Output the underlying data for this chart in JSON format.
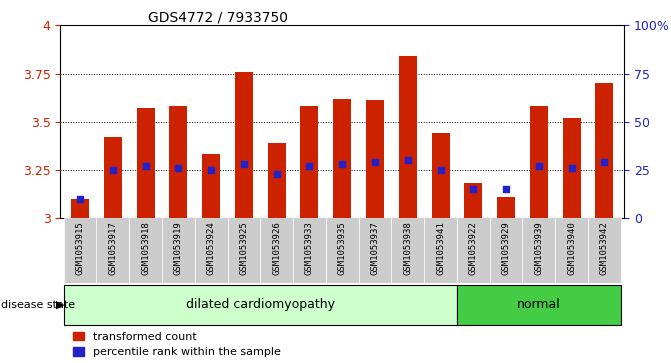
{
  "title": "GDS4772 / 7933750",
  "samples": [
    "GSM1053915",
    "GSM1053917",
    "GSM1053918",
    "GSM1053919",
    "GSM1053924",
    "GSM1053925",
    "GSM1053926",
    "GSM1053933",
    "GSM1053935",
    "GSM1053937",
    "GSM1053938",
    "GSM1053941",
    "GSM1053922",
    "GSM1053929",
    "GSM1053939",
    "GSM1053940",
    "GSM1053942"
  ],
  "transformed_count": [
    3.1,
    3.42,
    3.57,
    3.58,
    3.33,
    3.76,
    3.39,
    3.58,
    3.62,
    3.61,
    3.84,
    3.44,
    3.18,
    3.11,
    3.58,
    3.52,
    3.7
  ],
  "percentile_rank": [
    10,
    25,
    27,
    26,
    25,
    28,
    23,
    27,
    28,
    29,
    30,
    25,
    15,
    15,
    27,
    26,
    29
  ],
  "disease_state": [
    "dilated",
    "dilated",
    "dilated",
    "dilated",
    "dilated",
    "dilated",
    "dilated",
    "dilated",
    "dilated",
    "dilated",
    "dilated",
    "dilated",
    "normal",
    "normal",
    "normal",
    "normal",
    "normal"
  ],
  "ylim_left": [
    3.0,
    4.0
  ],
  "ylim_right": [
    0,
    100
  ],
  "yticks_left": [
    3.0,
    3.25,
    3.5,
    3.75,
    4.0
  ],
  "yticks_right": [
    0,
    25,
    50,
    75,
    100
  ],
  "bar_color": "#cc2200",
  "dot_color": "#2222cc",
  "grid_color": "#000000",
  "dilated_color": "#ccffcc",
  "normal_color": "#44cc44",
  "bg_color": "#cccccc",
  "left_tick_color": "#cc2200",
  "right_tick_color": "#2222cc"
}
